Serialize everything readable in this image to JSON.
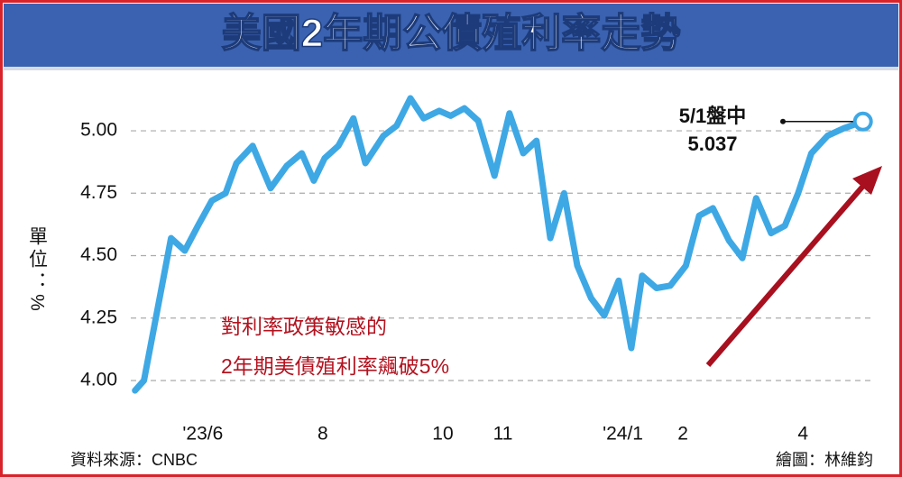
{
  "chart_data": {
    "type": "line",
    "title": "美國2年期公債殖利率走勢",
    "y_label": "單位：%",
    "x": [
      4.87,
      5.02,
      5.47,
      5.7,
      5.92,
      6.15,
      6.38,
      6.56,
      6.83,
      7.13,
      7.4,
      7.65,
      7.85,
      8.03,
      8.26,
      8.51,
      8.71,
      9.01,
      9.23,
      9.46,
      9.68,
      9.94,
      10.13,
      10.36,
      10.59,
      10.86,
      11.11,
      11.34,
      11.56,
      11.79,
      12.02,
      12.24,
      12.47,
      12.69,
      12.93,
      13.14,
      13.32,
      13.56,
      13.79,
      14.05,
      14.27,
      14.5,
      14.77,
      14.99,
      15.22,
      15.47,
      15.7,
      15.92,
      16.14,
      16.41,
      16.68,
      17
    ],
    "values": [
      3.96,
      4.0,
      4.57,
      4.52,
      4.62,
      4.72,
      4.75,
      4.87,
      4.94,
      4.77,
      4.86,
      4.91,
      4.8,
      4.89,
      4.94,
      5.05,
      4.87,
      4.98,
      5.02,
      5.13,
      5.05,
      5.08,
      5.06,
      5.09,
      5.04,
      4.82,
      5.07,
      4.91,
      4.96,
      4.57,
      4.75,
      4.46,
      4.33,
      4.26,
      4.4,
      4.13,
      4.42,
      4.37,
      4.38,
      4.46,
      4.66,
      4.69,
      4.56,
      4.49,
      4.73,
      4.59,
      4.62,
      4.75,
      4.91,
      4.98,
      5.01,
      5.037
    ],
    "color": "#3ea8e5",
    "xlim": [
      4.8,
      17.2
    ],
    "xticks": [
      {
        "value": 6,
        "label": "'23/6"
      },
      8,
      10,
      11,
      {
        "value": 13,
        "label": "'24/1"
      },
      {
        "value": 14,
        "label": "2"
      },
      {
        "value": 16,
        "label": "4"
      }
    ],
    "ylim": [
      3.9,
      5.15
    ],
    "yticks": [
      {
        "value": 4,
        "label": "4.00"
      },
      4.25,
      {
        "value": 4.5,
        "label": "4.50"
      },
      4.75,
      {
        "value": 5,
        "label": "5.00"
      }
    ],
    "grid": true,
    "last_point_note": "5/1盤中",
    "callout": [
      "對利率政策敏感的",
      "2年期美債殖利率飆破5%"
    ],
    "source": "資料來源：CNBC",
    "credit": "繪圖：林維鈞"
  }
}
